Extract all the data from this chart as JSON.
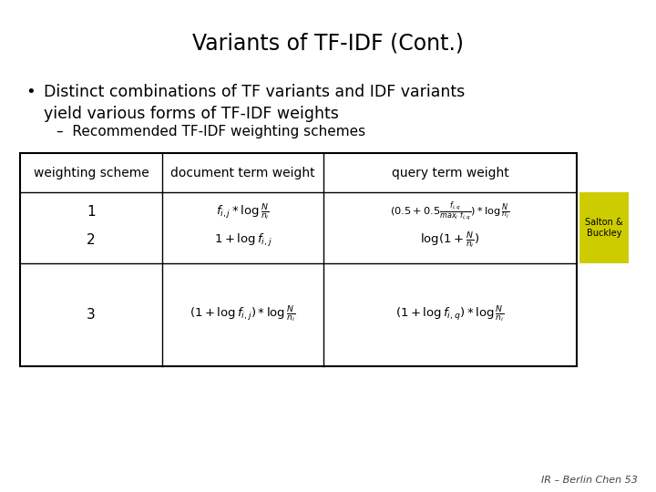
{
  "title": "Variants of TF-IDF (Cont.)",
  "bg_color": "#ffffff",
  "title_color": "#000000",
  "text_color": "#000000",
  "table_headers": [
    "weighting scheme",
    "document term weight",
    "query term weight"
  ],
  "row1_scheme": "1",
  "row1_doc": "$f_{i,j} * \\log \\frac{N}{n_i}$",
  "row1_query": "$(0.5 + 0.5\\frac{f_{i,q}}{max_i\\ f_{i,q}}) * \\log \\frac{N}{n_i}$",
  "row2_scheme": "2",
  "row2_doc": "$1 + \\log f_{i,j}$",
  "row2_query": "$\\log(1 + \\frac{N}{n_i})$",
  "row3_scheme": "3",
  "row3_doc": "$(1 + \\log f_{i,j}) * \\log \\frac{N}{n_i}$",
  "row3_query": "$(1 + \\log f_{i,q}) * \\log \\frac{N}{n_i}$",
  "salton_buckley_color": "#cccc00",
  "footer": "IR – Berlin Chen 53",
  "bullet_line1": "Distinct combinations of TF variants and IDF variants",
  "bullet_line2": "yield various forms of TF-IDF weights",
  "bullet_sub": "Recommended TF-IDF weighting schemes"
}
